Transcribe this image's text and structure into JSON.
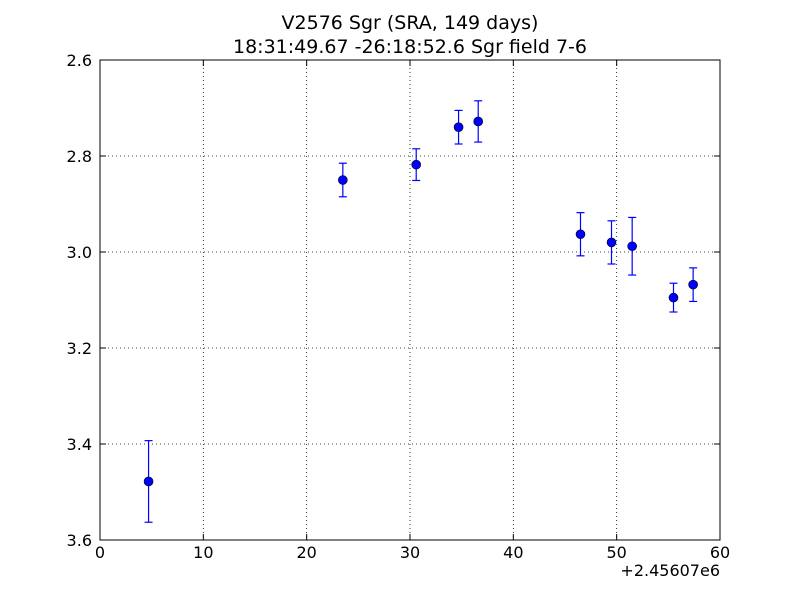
{
  "chart_data": {
    "type": "scatter",
    "title": "V2576 Sgr  (SRA, 149 days)",
    "subtitle": "18:31:49.67 -26:18:52.6 Sgr field 7-6",
    "xlabel": "",
    "ylabel": "",
    "x_offset_label": "+2.45607e6",
    "xlim": [
      0,
      60
    ],
    "ylim": [
      3.6,
      2.6
    ],
    "y_inverted": true,
    "grid": true,
    "x_ticks": [
      0,
      10,
      20,
      30,
      40,
      50,
      60
    ],
    "x_tick_labels": [
      "0",
      "10",
      "20",
      "30",
      "40",
      "50",
      "60"
    ],
    "y_ticks": [
      2.6,
      2.8,
      3.0,
      3.2,
      3.4,
      3.6
    ],
    "y_tick_labels": [
      "2.6",
      "2.8",
      "3.0",
      "3.2",
      "3.4",
      "3.6"
    ],
    "color": "#0000ff",
    "points": [
      {
        "x": 4.7,
        "y": 3.478,
        "err": 0.085
      },
      {
        "x": 23.5,
        "y": 2.85,
        "err": 0.035
      },
      {
        "x": 30.6,
        "y": 2.818,
        "err": 0.033
      },
      {
        "x": 34.7,
        "y": 2.74,
        "err": 0.035
      },
      {
        "x": 36.6,
        "y": 2.728,
        "err": 0.043
      },
      {
        "x": 46.5,
        "y": 2.963,
        "err": 0.045
      },
      {
        "x": 49.5,
        "y": 2.98,
        "err": 0.045
      },
      {
        "x": 51.5,
        "y": 2.988,
        "err": 0.06
      },
      {
        "x": 55.5,
        "y": 3.095,
        "err": 0.03
      },
      {
        "x": 57.4,
        "y": 3.068,
        "err": 0.035
      }
    ]
  }
}
